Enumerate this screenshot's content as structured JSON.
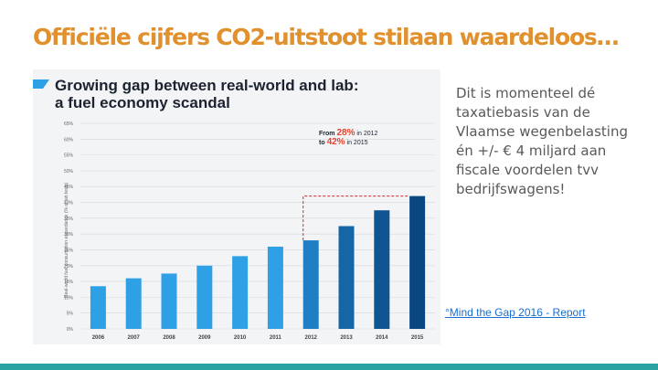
{
  "slide": {
    "title": "Officiële cijfers CO2-uitstoot stilaan waardeloos…",
    "body_text": "Dit is momenteel dé taxatiebasis van de Vlaamse wegenbelasting én +/- € 4 miljard aan fiscale voordelen tvv bedrijfswagens!",
    "source_link": "°Mind the Gap 2016 - Report",
    "accent_color": "#e0902c",
    "bar_color": "#2ba3a3"
  },
  "chart_data": {
    "type": "bar",
    "title_line1": "Growing gap between real-world and lab:",
    "title_line2": "a fuel economy scandal",
    "ylabel": "Real-world fuel consumption exceedance (% of lab tests)",
    "ylim": [
      0,
      65
    ],
    "yticks": [
      "0%",
      "5%",
      "10%",
      "15%",
      "20%",
      "25%",
      "30%",
      "35%",
      "40%",
      "45%",
      "50%",
      "55%",
      "60%",
      "65%"
    ],
    "categories": [
      "2006",
      "2007",
      "2008",
      "2009",
      "2010",
      "2011",
      "2012",
      "2013",
      "2014",
      "2015"
    ],
    "values": [
      13.5,
      16,
      17.5,
      20,
      23,
      26,
      28,
      32.5,
      37.5,
      42
    ],
    "colors": [
      "#2ea0e6",
      "#2ea0e6",
      "#2ea0e6",
      "#2ea0e6",
      "#2ea0e6",
      "#2ea0e6",
      "#1e7fc4",
      "#1566a6",
      "#0f5591",
      "#0a4680"
    ],
    "annotation": {
      "from_text": "From",
      "from_value": "28%",
      "from_suffix": "in 2012",
      "to_text": "to",
      "to_value": "42%",
      "to_suffix": "in 2015",
      "highlight_color": "#e8412c",
      "dashed_color": "#d9262c"
    }
  }
}
